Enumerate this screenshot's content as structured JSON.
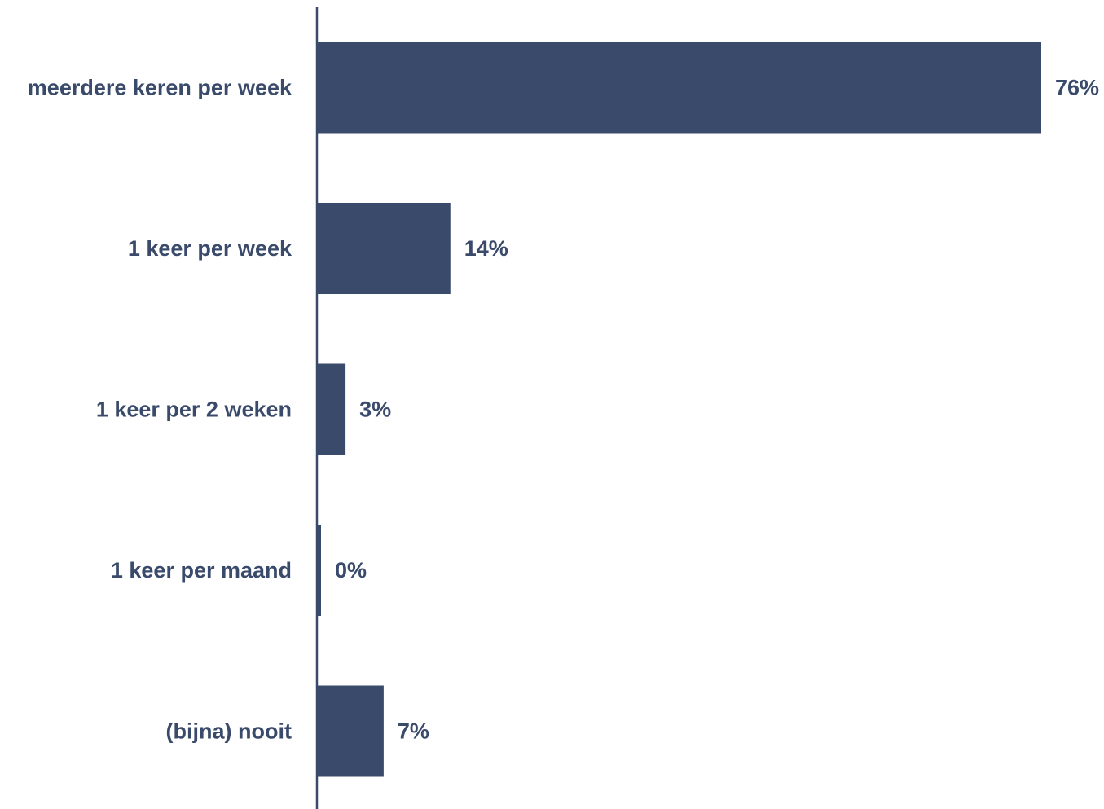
{
  "chart_data": {
    "type": "bar",
    "orientation": "horizontal",
    "categories": [
      "meerdere keren per week",
      "1 keer per week",
      "1 keer per 2 weken",
      "1 keer per maand",
      "(bijna) nooit"
    ],
    "values": [
      76,
      14,
      3,
      0,
      7
    ],
    "value_labels": [
      "76%",
      "14%",
      "3%",
      "0%",
      "7%"
    ],
    "title": "",
    "xlabel": "",
    "ylabel": "",
    "xlim": [
      0,
      76
    ],
    "grid": false,
    "legend": "none"
  },
  "colors": {
    "bar": "#3a4a6b",
    "text": "#3a4a6b",
    "axis": "#3a4a6b"
  }
}
